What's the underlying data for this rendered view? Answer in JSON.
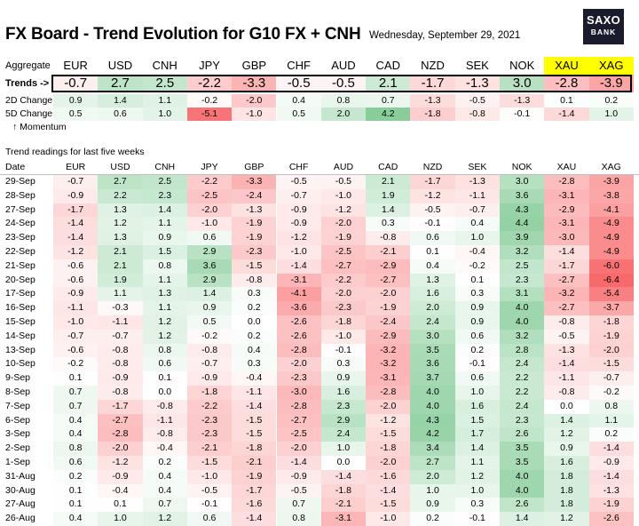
{
  "header": {
    "title": "FX Board - Trend Evolution for G10 FX + CNH",
    "date": "Wednesday, September 29, 2021",
    "logo_top": "SAXO",
    "logo_bottom": "BANK"
  },
  "labels": {
    "aggregate": "Aggregate",
    "trends": "Trends ->",
    "change2d": "2D Change",
    "change5d": "5D Change",
    "momentum": "↑ Momentum",
    "readings_title": "Trend readings for last five weeks",
    "date_col": "Date"
  },
  "colors": {
    "positive": "#63be7b",
    "negative": "#f8696b",
    "highlight": "#ffff00"
  },
  "chart_data": {
    "type": "heatmap",
    "currencies": [
      "EUR",
      "USD",
      "CNH",
      "JPY",
      "GBP",
      "CHF",
      "AUD",
      "CAD",
      "NZD",
      "SEK",
      "NOK",
      "XAU",
      "XAG"
    ],
    "highlighted": [
      "XAU",
      "XAG"
    ],
    "trends": [
      -0.7,
      2.7,
      2.5,
      -2.2,
      -3.3,
      -0.5,
      -0.5,
      2.1,
      -1.7,
      -1.3,
      3.0,
      -2.8,
      -3.9
    ],
    "change_2d": [
      0.9,
      1.4,
      1.1,
      -0.2,
      -2.0,
      0.4,
      0.8,
      0.7,
      -1.3,
      -0.5,
      -1.3,
      0.1,
      0.2
    ],
    "change_5d": [
      0.5,
      0.6,
      1.0,
      -5.1,
      -1.0,
      0.5,
      2.0,
      4.2,
      -1.8,
      -0.8,
      -0.1,
      -1.4,
      1.0
    ],
    "dates": [
      "29-Sep",
      "28-Sep",
      "27-Sep",
      "24-Sep",
      "23-Sep",
      "22-Sep",
      "21-Sep",
      "20-Sep",
      "17-Sep",
      "16-Sep",
      "15-Sep",
      "14-Sep",
      "13-Sep",
      "10-Sep",
      "9-Sep",
      "8-Sep",
      "7-Sep",
      "6-Sep",
      "3-Sep",
      "2-Sep",
      "1-Sep",
      "31-Aug",
      "30-Aug",
      "27-Aug",
      "26-Aug"
    ],
    "readings": [
      [
        -0.7,
        2.7,
        2.5,
        -2.2,
        -3.3,
        -0.5,
        -0.5,
        2.1,
        -1.7,
        -1.3,
        3.0,
        -2.8,
        -3.9
      ],
      [
        -0.9,
        2.2,
        2.3,
        -2.5,
        -2.4,
        -0.7,
        -1.0,
        1.9,
        -1.2,
        -1.1,
        3.6,
        -3.1,
        -3.8
      ],
      [
        -1.7,
        1.3,
        1.4,
        -2.0,
        -1.3,
        -0.9,
        -1.2,
        1.4,
        -0.5,
        -0.7,
        4.3,
        -2.9,
        -4.1
      ],
      [
        -1.4,
        1.2,
        1.1,
        -1.0,
        -1.9,
        -0.9,
        -2.0,
        0.3,
        -0.1,
        0.4,
        4.4,
        -3.1,
        -4.9
      ],
      [
        -1.4,
        1.3,
        0.9,
        0.6,
        -1.9,
        -1.2,
        -1.9,
        -0.8,
        0.6,
        1.0,
        3.9,
        -3.0,
        -4.9
      ],
      [
        -1.2,
        2.1,
        1.5,
        2.9,
        -2.3,
        -1.0,
        -2.5,
        -2.1,
        0.1,
        -0.4,
        3.2,
        -1.4,
        -4.9
      ],
      [
        -0.6,
        2.1,
        0.8,
        3.6,
        -1.5,
        -1.4,
        -2.7,
        -2.9,
        0.4,
        -0.2,
        2.5,
        -1.7,
        -6.0
      ],
      [
        -0.6,
        1.9,
        1.1,
        2.9,
        -0.8,
        -3.1,
        -2.2,
        -2.7,
        1.3,
        0.1,
        2.3,
        -2.7,
        -6.4
      ],
      [
        -0.9,
        1.1,
        1.3,
        1.4,
        0.3,
        -4.1,
        -2.0,
        -2.0,
        1.6,
        0.3,
        3.1,
        -3.2,
        -5.4
      ],
      [
        -1.1,
        -0.3,
        1.1,
        0.9,
        0.2,
        -3.6,
        -2.3,
        -1.9,
        2.0,
        0.9,
        4.0,
        -2.7,
        -3.7
      ],
      [
        -1.0,
        -1.1,
        1.2,
        0.5,
        0.0,
        -2.6,
        -1.8,
        -2.4,
        2.4,
        0.9,
        4.0,
        -0.8,
        -1.8
      ],
      [
        -0.7,
        -0.7,
        1.2,
        -0.2,
        0.2,
        -2.6,
        -1.0,
        -2.9,
        3.0,
        0.6,
        3.2,
        -0.5,
        -1.9
      ],
      [
        -0.6,
        -0.8,
        0.8,
        -0.8,
        0.4,
        -2.8,
        -0.1,
        -3.2,
        3.5,
        0.2,
        2.8,
        -1.3,
        -2.0
      ],
      [
        -0.2,
        -0.8,
        0.6,
        -0.7,
        0.3,
        -2.0,
        0.3,
        -3.2,
        3.6,
        -0.1,
        2.4,
        -1.4,
        -1.5
      ],
      [
        0.1,
        -0.9,
        0.1,
        -0.9,
        -0.4,
        -2.3,
        0.9,
        -3.1,
        3.7,
        0.6,
        2.2,
        -1.1,
        -0.7
      ],
      [
        0.7,
        -0.8,
        0.0,
        -1.8,
        -1.1,
        -3.0,
        1.6,
        -2.8,
        4.0,
        1.0,
        2.2,
        -0.8,
        -0.2
      ],
      [
        0.7,
        -1.7,
        -0.8,
        -2.2,
        -1.4,
        -2.8,
        2.3,
        -2.0,
        4.0,
        1.6,
        2.4,
        0.0,
        0.8
      ],
      [
        0.4,
        -2.7,
        -1.1,
        -2.3,
        -1.5,
        -2.7,
        2.9,
        -1.2,
        4.3,
        1.5,
        2.3,
        1.4,
        1.1
      ],
      [
        0.4,
        -2.8,
        -0.8,
        -2.3,
        -1.5,
        -2.5,
        2.4,
        -1.5,
        4.2,
        1.7,
        2.6,
        1.2,
        0.2
      ],
      [
        0.8,
        -2.0,
        -0.4,
        -2.1,
        -1.8,
        -2.0,
        1.0,
        -1.8,
        3.4,
        1.4,
        3.5,
        0.9,
        -1.4
      ],
      [
        0.6,
        -1.2,
        0.2,
        -1.5,
        -2.1,
        -1.4,
        0.0,
        -2.0,
        2.7,
        1.1,
        3.5,
        1.6,
        -0.9
      ],
      [
        0.2,
        -0.9,
        0.4,
        -1.0,
        -1.9,
        -0.9,
        -1.4,
        -1.6,
        2.0,
        1.2,
        4.0,
        1.8,
        -1.4
      ],
      [
        0.1,
        -0.4,
        0.4,
        -0.5,
        -1.7,
        -0.5,
        -1.8,
        -1.4,
        1.0,
        1.0,
        4.0,
        1.8,
        -1.3
      ],
      [
        0.1,
        0.1,
        0.7,
        -0.1,
        -1.6,
        0.7,
        -2.1,
        -1.5,
        0.9,
        0.3,
        2.6,
        1.8,
        -1.9
      ],
      [
        0.4,
        1.0,
        1.2,
        0.6,
        -1.4,
        0.8,
        -3.1,
        -1.0,
        0.2,
        -0.1,
        1.4,
        1.2,
        -2.6
      ]
    ]
  }
}
